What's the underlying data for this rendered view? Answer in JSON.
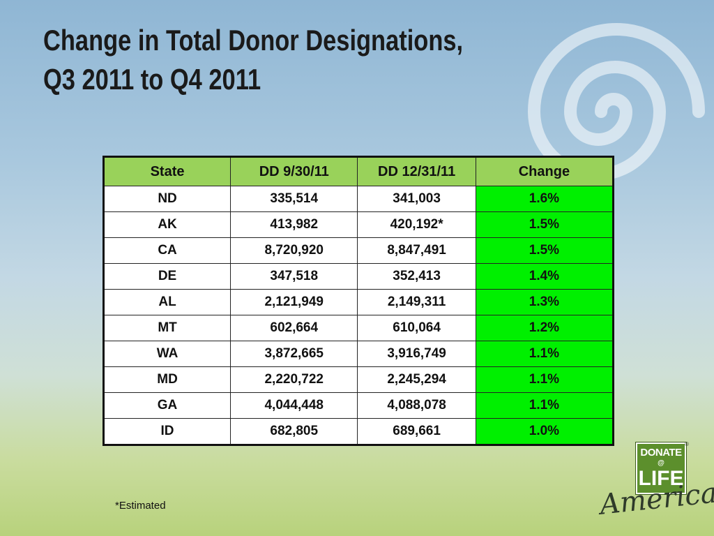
{
  "title": {
    "line1": "Change in Total Donor Designations,",
    "line2": "Q3 2011 to Q4 2011"
  },
  "table": {
    "headers": [
      "State",
      "DD 9/30/11",
      "DD 12/31/11",
      "Change"
    ],
    "rows": [
      [
        "ND",
        "335,514",
        "341,003",
        "1.6%"
      ],
      [
        "AK",
        "413,982",
        "420,192*",
        "1.5%"
      ],
      [
        "CA",
        "8,720,920",
        "8,847,491",
        "1.5%"
      ],
      [
        "DE",
        "347,518",
        "352,413",
        "1.4%"
      ],
      [
        "AL",
        "2,121,949",
        "2,149,311",
        "1.3%"
      ],
      [
        "MT",
        "602,664",
        "610,064",
        "1.2%"
      ],
      [
        "WA",
        "3,872,665",
        "3,916,749",
        "1.1%"
      ],
      [
        "MD",
        "2,220,722",
        "2,245,294",
        "1.1%"
      ],
      [
        "GA",
        "4,044,448",
        "4,088,078",
        "1.1%"
      ],
      [
        "ID",
        "682,805",
        "689,661",
        "1.0%"
      ]
    ]
  },
  "footnote": "*Estimated",
  "logo": {
    "top": "DONATE",
    "bottom": "LIFE",
    "script": "America",
    "registered": "®"
  },
  "colors": {
    "header_fill": "#99d25a",
    "change_fill": "#00f000",
    "logo_green": "#5c8f2c"
  }
}
